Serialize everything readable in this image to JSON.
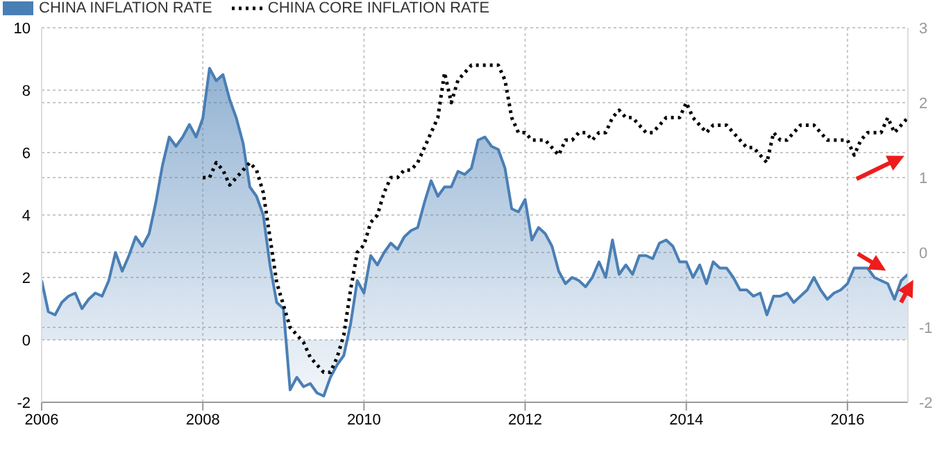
{
  "chart_data": {
    "type": "area",
    "legend": "top left",
    "grid": true,
    "x": [
      "2006-01",
      "2006-02",
      "2006-03",
      "2006-04",
      "2006-05",
      "2006-06",
      "2006-07",
      "2006-08",
      "2006-09",
      "2006-10",
      "2006-11",
      "2006-12",
      "2007-01",
      "2007-02",
      "2007-03",
      "2007-04",
      "2007-05",
      "2007-06",
      "2007-07",
      "2007-08",
      "2007-09",
      "2007-10",
      "2007-11",
      "2007-12",
      "2008-01",
      "2008-02",
      "2008-03",
      "2008-04",
      "2008-05",
      "2008-06",
      "2008-07",
      "2008-08",
      "2008-09",
      "2008-10",
      "2008-11",
      "2008-12",
      "2009-01",
      "2009-02",
      "2009-03",
      "2009-04",
      "2009-05",
      "2009-06",
      "2009-07",
      "2009-08",
      "2009-09",
      "2009-10",
      "2009-11",
      "2009-12",
      "2010-01",
      "2010-02",
      "2010-03",
      "2010-04",
      "2010-05",
      "2010-06",
      "2010-07",
      "2010-08",
      "2010-09",
      "2010-10",
      "2010-11",
      "2010-12",
      "2011-01",
      "2011-02",
      "2011-03",
      "2011-04",
      "2011-05",
      "2011-06",
      "2011-07",
      "2011-08",
      "2011-09",
      "2011-10",
      "2011-11",
      "2011-12",
      "2012-01",
      "2012-02",
      "2012-03",
      "2012-04",
      "2012-05",
      "2012-06",
      "2012-07",
      "2012-08",
      "2012-09",
      "2012-10",
      "2012-11",
      "2012-12",
      "2013-01",
      "2013-02",
      "2013-03",
      "2013-04",
      "2013-05",
      "2013-06",
      "2013-07",
      "2013-08",
      "2013-09",
      "2013-10",
      "2013-11",
      "2013-12",
      "2014-01",
      "2014-02",
      "2014-03",
      "2014-04",
      "2014-05",
      "2014-06",
      "2014-07",
      "2014-08",
      "2014-09",
      "2014-10",
      "2014-11",
      "2014-12",
      "2015-01",
      "2015-02",
      "2015-03",
      "2015-04",
      "2015-05",
      "2015-06",
      "2015-07",
      "2015-08",
      "2015-09",
      "2015-10",
      "2015-11",
      "2015-12",
      "2016-01",
      "2016-02",
      "2016-03",
      "2016-04",
      "2016-05",
      "2016-06",
      "2016-07",
      "2016-08",
      "2016-09",
      "2016-10"
    ],
    "xlim": [
      "2006-01",
      "2016-10"
    ],
    "xticks": [
      "2006",
      "2008",
      "2010",
      "2012",
      "2014",
      "2016"
    ],
    "ylim": [
      -2,
      10
    ],
    "yticks": [
      -2,
      0,
      2,
      4,
      6,
      8,
      10
    ],
    "y2lim": [
      -2,
      3
    ],
    "y2ticks": [
      -2,
      -1,
      0,
      1,
      2,
      3
    ],
    "series": [
      {
        "name": "CHINA INFLATION RATE",
        "color": "#4a7fb5",
        "values": [
          1.9,
          0.9,
          0.8,
          1.2,
          1.4,
          1.5,
          1.0,
          1.3,
          1.5,
          1.4,
          1.9,
          2.8,
          2.2,
          2.7,
          3.3,
          3.0,
          3.4,
          4.4,
          5.6,
          6.5,
          6.2,
          6.5,
          6.9,
          6.5,
          7.1,
          8.7,
          8.3,
          8.5,
          7.7,
          7.1,
          6.3,
          4.9,
          4.6,
          4.0,
          2.4,
          1.2,
          1.0,
          -1.6,
          -1.2,
          -1.5,
          -1.4,
          -1.7,
          -1.8,
          -1.2,
          -0.8,
          -0.5,
          0.5,
          1.9,
          1.5,
          2.7,
          2.4,
          2.8,
          3.1,
          2.9,
          3.3,
          3.5,
          3.6,
          4.4,
          5.1,
          4.6,
          4.9,
          4.9,
          5.4,
          5.3,
          5.5,
          6.4,
          6.5,
          6.2,
          6.1,
          5.5,
          4.2,
          4.1,
          4.5,
          3.2,
          3.6,
          3.4,
          3.0,
          2.2,
          1.8,
          2.0,
          1.9,
          1.7,
          2.0,
          2.5,
          2.0,
          3.2,
          2.1,
          2.4,
          2.1,
          2.7,
          2.7,
          2.6,
          3.1,
          3.2,
          3.0,
          2.5,
          2.5,
          2.0,
          2.4,
          1.8,
          2.5,
          2.3,
          2.3,
          2.0,
          1.6,
          1.6,
          1.4,
          1.5,
          0.8,
          1.4,
          1.4,
          1.5,
          1.2,
          1.4,
          1.6,
          2.0,
          1.6,
          1.3,
          1.5,
          1.6,
          1.8,
          2.3,
          2.3,
          2.3,
          2.0,
          1.9,
          1.8,
          1.3,
          1.9,
          2.1
        ]
      },
      {
        "name": "CHINA CORE INFLATION RATE",
        "type": "line",
        "axis": "y2",
        "color": "#000000",
        "line_style": "dotted",
        "values": [
          null,
          null,
          null,
          null,
          null,
          null,
          null,
          null,
          null,
          null,
          null,
          null,
          null,
          null,
          null,
          null,
          null,
          null,
          null,
          null,
          null,
          null,
          null,
          null,
          1.0,
          1.0,
          1.2,
          1.1,
          0.9,
          1.0,
          1.1,
          1.2,
          1.1,
          0.8,
          0.2,
          -0.4,
          -0.7,
          -1.0,
          -1.1,
          -1.2,
          -1.4,
          -1.5,
          -1.6,
          -1.6,
          -1.4,
          -1.1,
          -0.5,
          0.0,
          0.1,
          0.4,
          0.5,
          0.8,
          1.0,
          1.0,
          1.1,
          1.1,
          1.2,
          1.4,
          1.6,
          1.8,
          2.4,
          2.0,
          2.3,
          2.4,
          2.5,
          2.5,
          2.5,
          2.5,
          2.5,
          2.3,
          1.8,
          1.6,
          1.6,
          1.5,
          1.5,
          1.5,
          1.4,
          1.3,
          1.5,
          1.5,
          1.6,
          1.6,
          1.5,
          1.6,
          1.6,
          1.8,
          1.9,
          1.8,
          1.8,
          1.7,
          1.6,
          1.6,
          1.7,
          1.8,
          1.8,
          1.8,
          2.0,
          1.8,
          1.7,
          1.6,
          1.7,
          1.7,
          1.7,
          1.6,
          1.5,
          1.4,
          1.4,
          1.3,
          1.2,
          1.6,
          1.5,
          1.5,
          1.6,
          1.7,
          1.7,
          1.7,
          1.6,
          1.5,
          1.5,
          1.5,
          1.5,
          1.3,
          1.5,
          1.6,
          1.6,
          1.6,
          1.8,
          1.6,
          1.7,
          1.8
        ]
      }
    ]
  }
}
